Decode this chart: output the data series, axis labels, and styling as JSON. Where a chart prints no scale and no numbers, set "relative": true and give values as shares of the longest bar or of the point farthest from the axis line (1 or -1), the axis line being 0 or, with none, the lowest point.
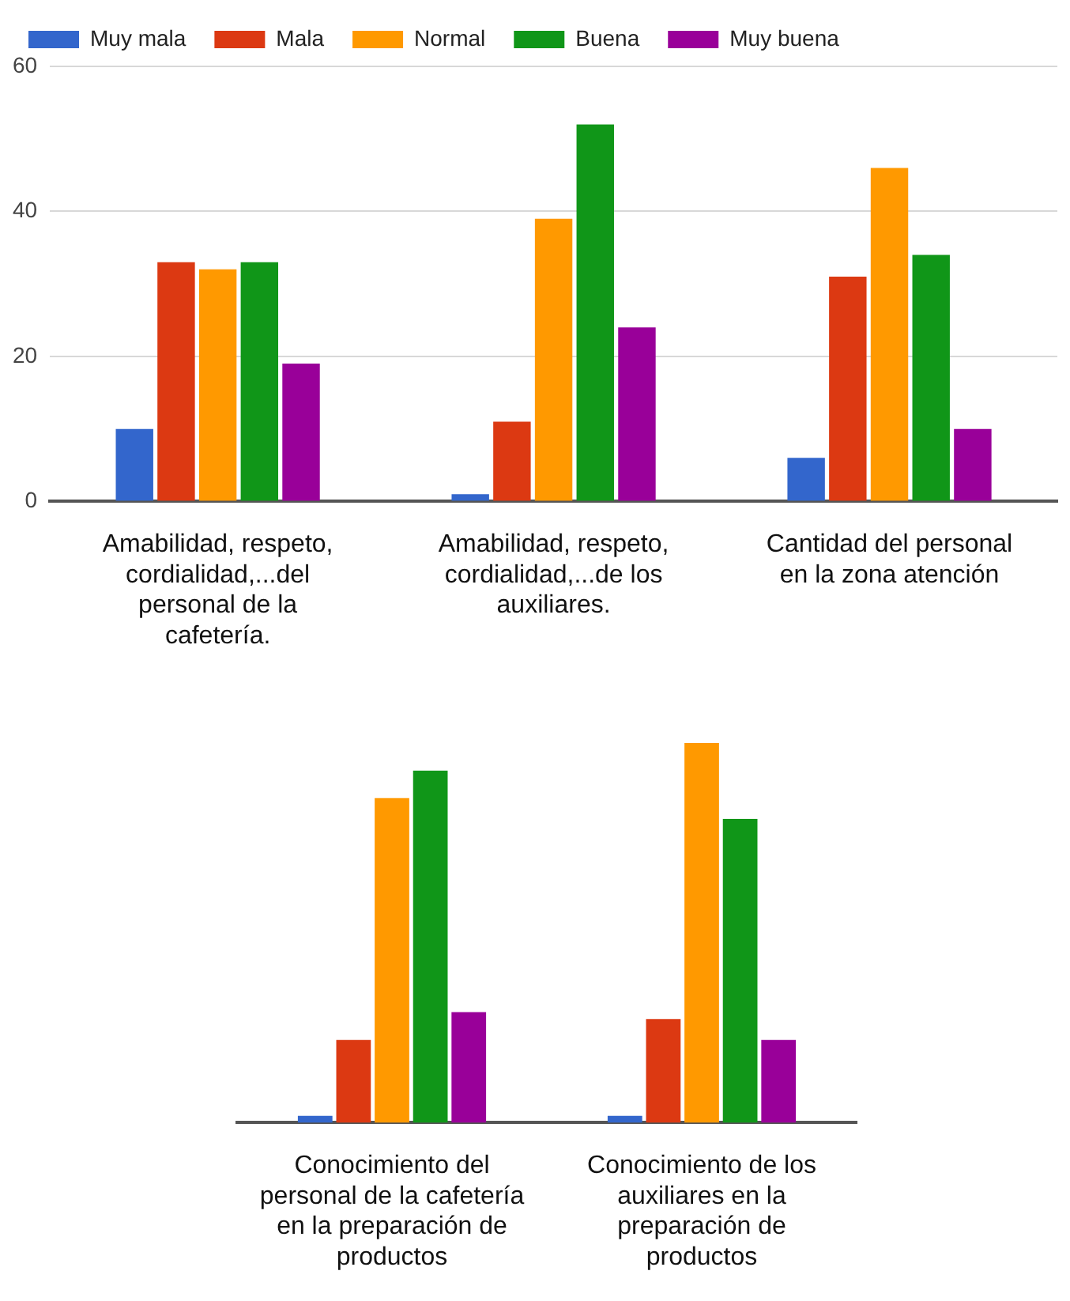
{
  "chart_data": [
    {
      "type": "bar",
      "categories": [
        "Amabilidad, respeto, cordialidad,...del personal de la cafetería.",
        "Amabilidad, respeto, cordialidad,...de los auxiliares.",
        "Cantidad del personal en la zona atención"
      ],
      "series": [
        {
          "name": "Muy mala",
          "color": "#3366cc",
          "values": [
            10,
            1,
            6
          ]
        },
        {
          "name": "Mala",
          "color": "#dc3912",
          "values": [
            33,
            11,
            31
          ]
        },
        {
          "name": "Normal",
          "color": "#ff9900",
          "values": [
            32,
            39,
            46
          ]
        },
        {
          "name": "Buena",
          "color": "#109618",
          "values": [
            33,
            52,
            34
          ]
        },
        {
          "name": "Muy buena",
          "color": "#990099",
          "values": [
            19,
            24,
            10
          ]
        }
      ],
      "ylim": [
        0,
        60
      ],
      "yticks": [
        0,
        20,
        40,
        60
      ],
      "grid": "y",
      "legend": "top"
    },
    {
      "type": "bar",
      "categories": [
        "Conocimiento del personal de la cafetería en la preparación de productos",
        "Conocimiento de los auxiliares en la preparación de productos"
      ],
      "series": [
        {
          "color": "#3366cc",
          "values": [
            0.018,
            0.018
          ]
        },
        {
          "color": "#dc3912",
          "values": [
            0.218,
            0.273
          ]
        },
        {
          "color": "#ff9900",
          "values": [
            0.855,
            1
          ]
        },
        {
          "color": "#109618",
          "values": [
            0.927,
            0.8
          ]
        },
        {
          "color": "#990099",
          "values": [
            0.291,
            0.218
          ]
        }
      ],
      "relative": true
    }
  ]
}
